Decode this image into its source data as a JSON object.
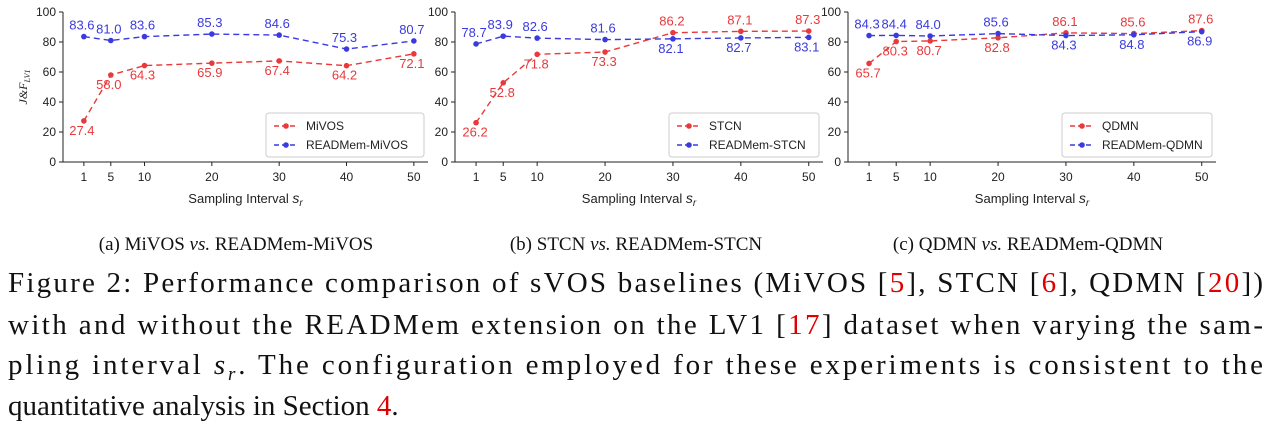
{
  "colors": {
    "red": "#e8393b",
    "blue": "#3a3ae0",
    "axis": "#222222",
    "caption_ref": "#e00000"
  },
  "chart_data": [
    {
      "type": "line",
      "ylabel": "J&F_LV1",
      "xlabel": "Sampling Interval s_r",
      "x": [
        1,
        5,
        10,
        20,
        30,
        40,
        50
      ],
      "xlim": [
        0,
        50
      ],
      "ylim": [
        0,
        100
      ],
      "yticks": [
        0,
        20,
        40,
        60,
        80,
        100
      ],
      "legend_position": "lower-right",
      "series": [
        {
          "name": "MiVOS",
          "color": "red",
          "values": [
            27.4,
            58.0,
            64.3,
            65.9,
            67.4,
            64.2,
            72.1
          ]
        },
        {
          "name": "READMem-MiVOS",
          "color": "blue",
          "values": [
            83.6,
            81.0,
            83.6,
            85.3,
            84.6,
            75.3,
            80.7
          ]
        }
      ],
      "subcaption": {
        "label": "(a)",
        "a": "MiVOS",
        "vs": "vs.",
        "b": "READMem-MiVOS"
      }
    },
    {
      "type": "line",
      "ylabel": "",
      "xlabel": "Sampling Interval s_r",
      "x": [
        1,
        5,
        10,
        20,
        30,
        40,
        50
      ],
      "xlim": [
        0,
        50
      ],
      "ylim": [
        0,
        100
      ],
      "yticks": [
        0,
        20,
        40,
        60,
        80,
        100
      ],
      "legend_position": "lower-right",
      "series": [
        {
          "name": "STCN",
          "color": "red",
          "values": [
            26.2,
            52.8,
            71.8,
            73.3,
            86.2,
            87.1,
            87.3
          ]
        },
        {
          "name": "READMem-STCN",
          "color": "blue",
          "values": [
            78.7,
            83.9,
            82.6,
            81.6,
            82.1,
            82.7,
            83.1
          ]
        }
      ],
      "subcaption": {
        "label": "(b)",
        "a": "STCN",
        "vs": "vs.",
        "b": "READMem-STCN"
      }
    },
    {
      "type": "line",
      "ylabel": "",
      "xlabel": "Sampling Interval s_r",
      "x": [
        1,
        5,
        10,
        20,
        30,
        40,
        50
      ],
      "xlim": [
        0,
        50
      ],
      "ylim": [
        0,
        100
      ],
      "yticks": [
        0,
        20,
        40,
        60,
        80,
        100
      ],
      "legend_position": "lower-right",
      "series": [
        {
          "name": "QDMN",
          "color": "red",
          "values": [
            65.7,
            80.3,
            80.7,
            82.8,
            86.1,
            85.6,
            87.6
          ]
        },
        {
          "name": "READMem-QDMN",
          "color": "blue",
          "values": [
            84.3,
            84.4,
            84.0,
            85.6,
            84.3,
            84.8,
            86.9
          ]
        }
      ],
      "subcaption": {
        "label": "(c)",
        "a": "QDMN",
        "vs": "vs.",
        "b": "READMem-QDMN"
      }
    }
  ],
  "caption": {
    "lines": [
      [
        {
          "t": "Figure 2: Performance comparison of sVOS baselines (MiVOS ["
        },
        {
          "t": "5",
          "ref": true
        },
        {
          "t": "], STCN ["
        },
        {
          "t": "6",
          "ref": true
        },
        {
          "t": "], QDMN ["
        },
        {
          "t": "20",
          "ref": true
        },
        {
          "t": "])"
        }
      ],
      [
        {
          "t": "with and without the READMem extension on the LV1 ["
        },
        {
          "t": "17",
          "ref": true
        },
        {
          "t": "] dataset when varying the sam-"
        }
      ],
      [
        {
          "t": "pling interval "
        },
        {
          "t": "s",
          "it": true
        },
        {
          "t": "r",
          "it": true,
          "sub": true
        },
        {
          "t": ".  The configuration employed for these experiments is consistent to the"
        }
      ],
      [
        {
          "t": "quantitative analysis in Section "
        },
        {
          "t": "4",
          "ref": true
        },
        {
          "t": "."
        }
      ]
    ]
  }
}
